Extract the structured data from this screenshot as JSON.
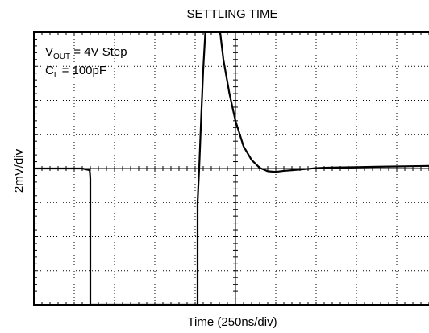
{
  "chart_data": {
    "type": "line",
    "title": "SETTLING TIME",
    "xlabel": "Time (250ns/div)",
    "ylabel": "2mV/div",
    "x_divisions": 10,
    "y_divisions": 8,
    "x_range_div": [
      0,
      10
    ],
    "y_range_div": [
      -4,
      4
    ],
    "grid": "dotted, with minor ticks on center axes",
    "annotations": {
      "line1": {
        "prefix": "V",
        "sub": "OUT",
        "rest": " = 4V Step"
      },
      "line2": {
        "prefix": "C",
        "sub": "L",
        "rest": " = 100pF"
      }
    },
    "series": [
      {
        "color": "#000000",
        "x": [
          0,
          0.5,
          1.0,
          1.2,
          1.38,
          1.39,
          1.4,
          1.4,
          1.41,
          1.5,
          2.0,
          2.5,
          3.0,
          3.5,
          4.0,
          4.03,
          4.06,
          4.06,
          4.1,
          4.15,
          4.2,
          4.3,
          4.4,
          4.5,
          4.55,
          4.6,
          4.62,
          4.62,
          4.7,
          4.85,
          5.0,
          5.2,
          5.4,
          5.6,
          5.8,
          6.0,
          6.2,
          6.4,
          6.6,
          6.8,
          7.0,
          7.2,
          7.5,
          8.0,
          8.5,
          9.0,
          9.5,
          10.0
        ],
        "y": [
          0,
          0,
          0,
          0,
          -0.05,
          -0.12,
          -0.3,
          -4,
          -4,
          -4,
          -4,
          -4,
          -4,
          -4,
          -4,
          -4,
          -4,
          -1,
          0,
          1.5,
          2.9,
          5,
          5,
          5,
          5,
          5,
          5,
          4,
          3.2,
          2.2,
          1.4,
          0.65,
          0.25,
          0.02,
          -0.08,
          -0.1,
          -0.07,
          -0.05,
          -0.03,
          -0.01,
          0.01,
          0.02,
          0.03,
          0.04,
          0.05,
          0.06,
          0.07,
          0.08
        ]
      }
    ]
  }
}
